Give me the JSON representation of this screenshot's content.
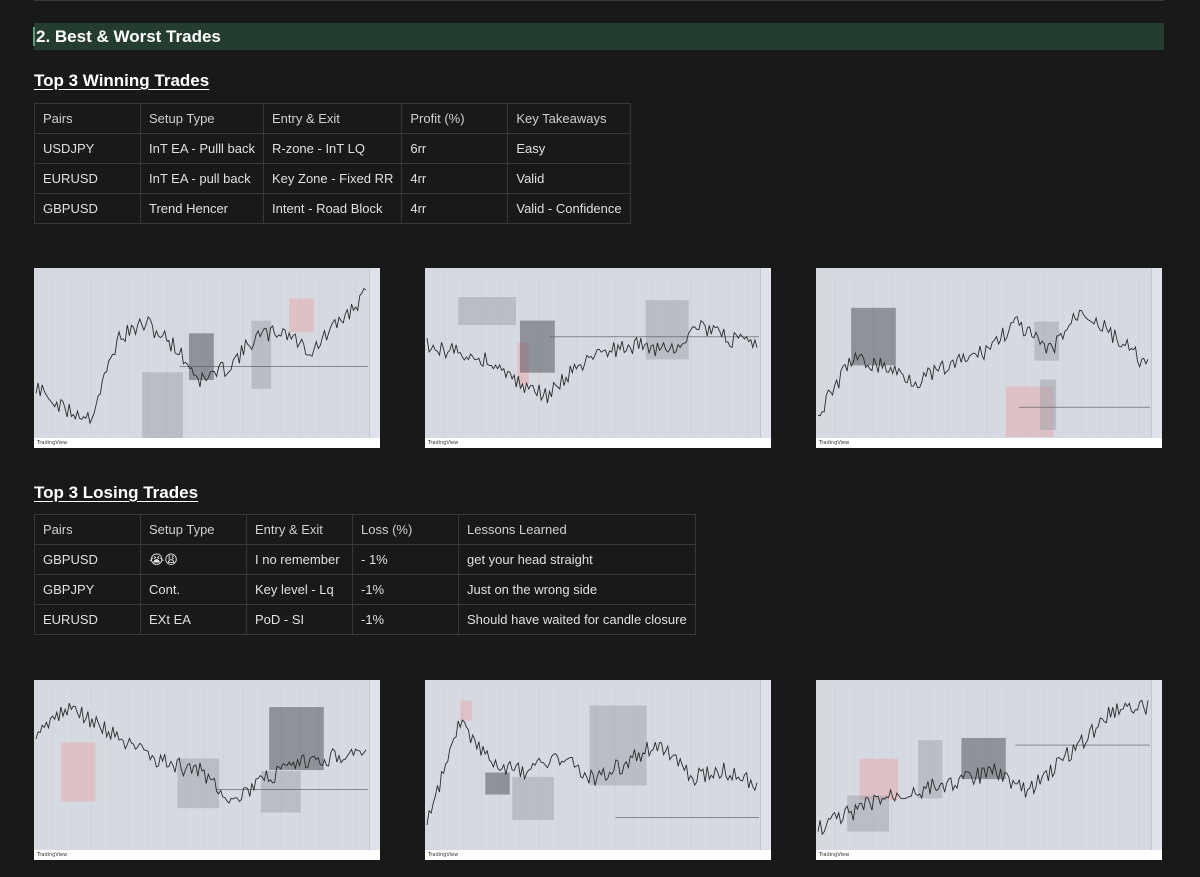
{
  "section": {
    "title": "2. Best & Worst Trades"
  },
  "winning": {
    "title": "Top 3 Winning Trades",
    "headers": [
      "Pairs",
      "Setup Type",
      "Entry & Exit",
      "Profit (%)",
      "Key Takeaways"
    ],
    "rows": [
      [
        "USDJPY",
        "InT EA - Pulll back",
        "R-zone - InT LQ",
        "6rr",
        "Easy"
      ],
      [
        "EURUSD",
        "InT EA - pull back",
        "Key Zone - Fixed RR",
        "4rr",
        "Valid"
      ],
      [
        "GBPUSD",
        "Trend Hencer",
        "Intent - Road Block",
        "4rr",
        "Valid - Confidence"
      ]
    ]
  },
  "losing": {
    "title": "Top 3 Losing Trades",
    "headers": [
      "Pairs",
      "Setup Type",
      "Entry & Exit",
      "Loss (%)",
      "Lessons Learned"
    ],
    "rows": [
      [
        "GBPUSD",
        "😭😩",
        "I no remember",
        "- 1%",
        "get your head straight"
      ],
      [
        "GBPJPY",
        "Cont.",
        "Key level - Lq",
        "-1%",
        "Just on the wrong side"
      ],
      [
        "EURUSD",
        "EXt EA",
        "PoD - SI",
        "-1%",
        "Should have waited for candle closure"
      ]
    ]
  },
  "charts": {
    "watermark": "TradingView",
    "colors": {
      "background": "#d6d9e0",
      "price": "#2a2a2a",
      "zone": "#9a9ca2",
      "zone_dark": "#55575c",
      "zone_red": "#e7a5a8"
    }
  }
}
